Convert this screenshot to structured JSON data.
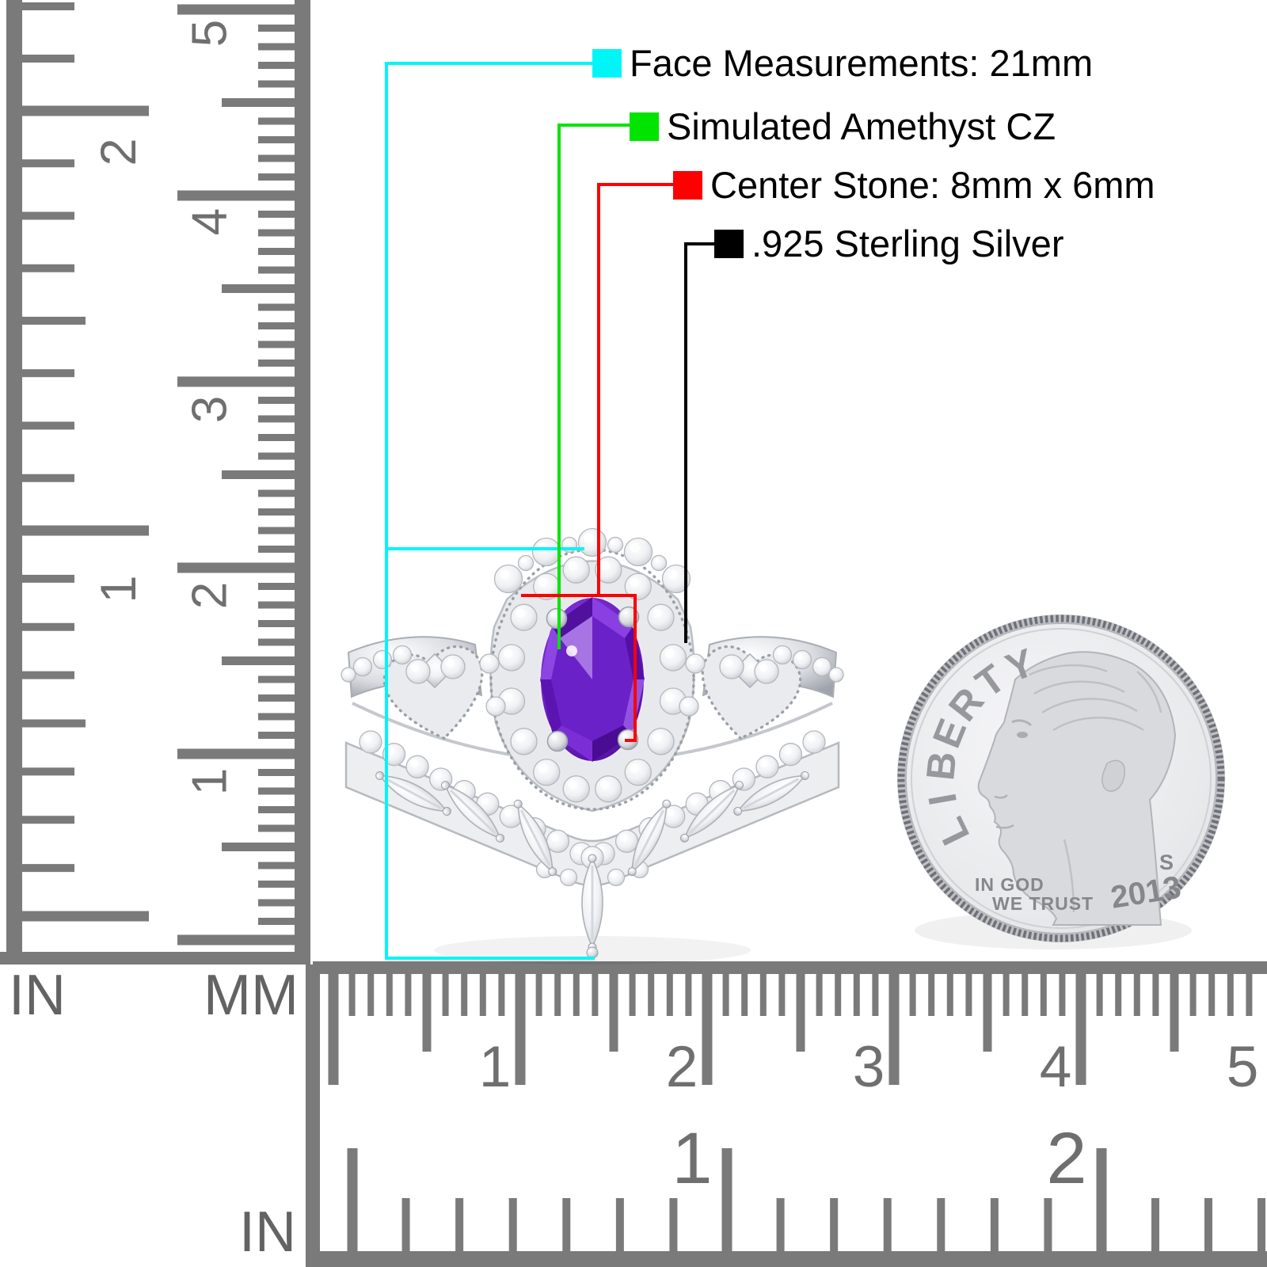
{
  "annotations": {
    "items": [
      {
        "label": "Face Measurements: 21mm",
        "color": "#00f6f6"
      },
      {
        "label": "Simulated Amethyst CZ",
        "color": "#00e400"
      },
      {
        "label": "Center Stone: 8mm x 6mm",
        "color": "#fe0000"
      },
      {
        "label": ".925 Sterling Silver",
        "color": "#000000"
      }
    ]
  },
  "rulers": {
    "left_inch": {
      "unit_label": "IN",
      "numbers": [
        "2",
        "1"
      ]
    },
    "left_mm": {
      "unit_label": "MM",
      "numbers": [
        "5",
        "4",
        "3",
        "2",
        "1"
      ]
    },
    "bottom_cm": {
      "numbers": [
        "1",
        "2",
        "3",
        "4",
        "5"
      ]
    },
    "bottom_inch": {
      "unit_label": "IN",
      "numbers": [
        "1",
        "2"
      ]
    }
  },
  "coin": {
    "liberty": "LIBERTY",
    "motto_line1": "IN GOD",
    "motto_line2": "WE TRUST",
    "year": "2013",
    "mint_mark": "S"
  },
  "colors": {
    "ruler": "#7a7a7a",
    "ruler_text": "#6f6f6f",
    "amethyst_dark": "#4a0c92",
    "amethyst_mid": "#6b21c8",
    "amethyst_light": "#9b5ce8",
    "silver_light": "#f2f3f5",
    "silver_mid": "#d9dbe0",
    "silver_dark": "#a8acb4",
    "cz_white": "#ffffff"
  }
}
